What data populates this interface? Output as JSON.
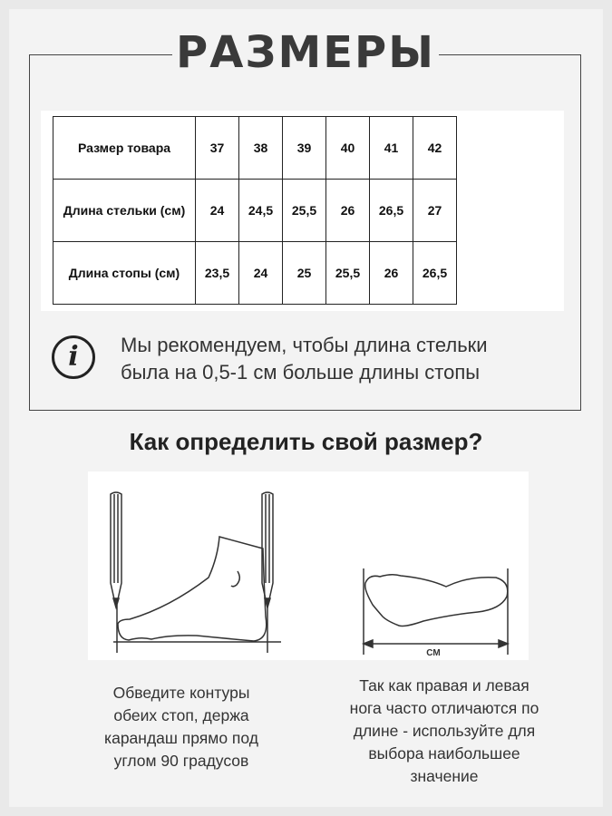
{
  "title": "РАЗМЕРЫ",
  "size_table": {
    "rows": [
      {
        "label": "Размер товара",
        "values": [
          "37",
          "38",
          "39",
          "40",
          "41",
          "42"
        ]
      },
      {
        "label": "Длина стельки (см)",
        "values": [
          "24",
          "24,5",
          "25,5",
          "26",
          "26,5",
          "27"
        ]
      },
      {
        "label": "Длина стопы (см)",
        "values": [
          "23,5",
          "24",
          "25",
          "25,5",
          "26",
          "26,5"
        ]
      }
    ]
  },
  "info": {
    "icon": "info-icon",
    "glyph": "i",
    "lines": [
      "Мы рекомендуем, чтобы длина стельки",
      "была на 0,5-1 см больше длины стопы"
    ]
  },
  "how_to": {
    "heading": "Как определить свой размер?",
    "measure_label": "СМ",
    "left_caption": [
      "Обведите контуры",
      "обеих стоп, держа",
      "карандаш прямо под",
      "углом 90 градусов"
    ],
    "right_caption": [
      "Так как правая и левая",
      "нога часто отличаются по",
      "длине - используйте для",
      "выбора наибольшее",
      "значение"
    ]
  }
}
